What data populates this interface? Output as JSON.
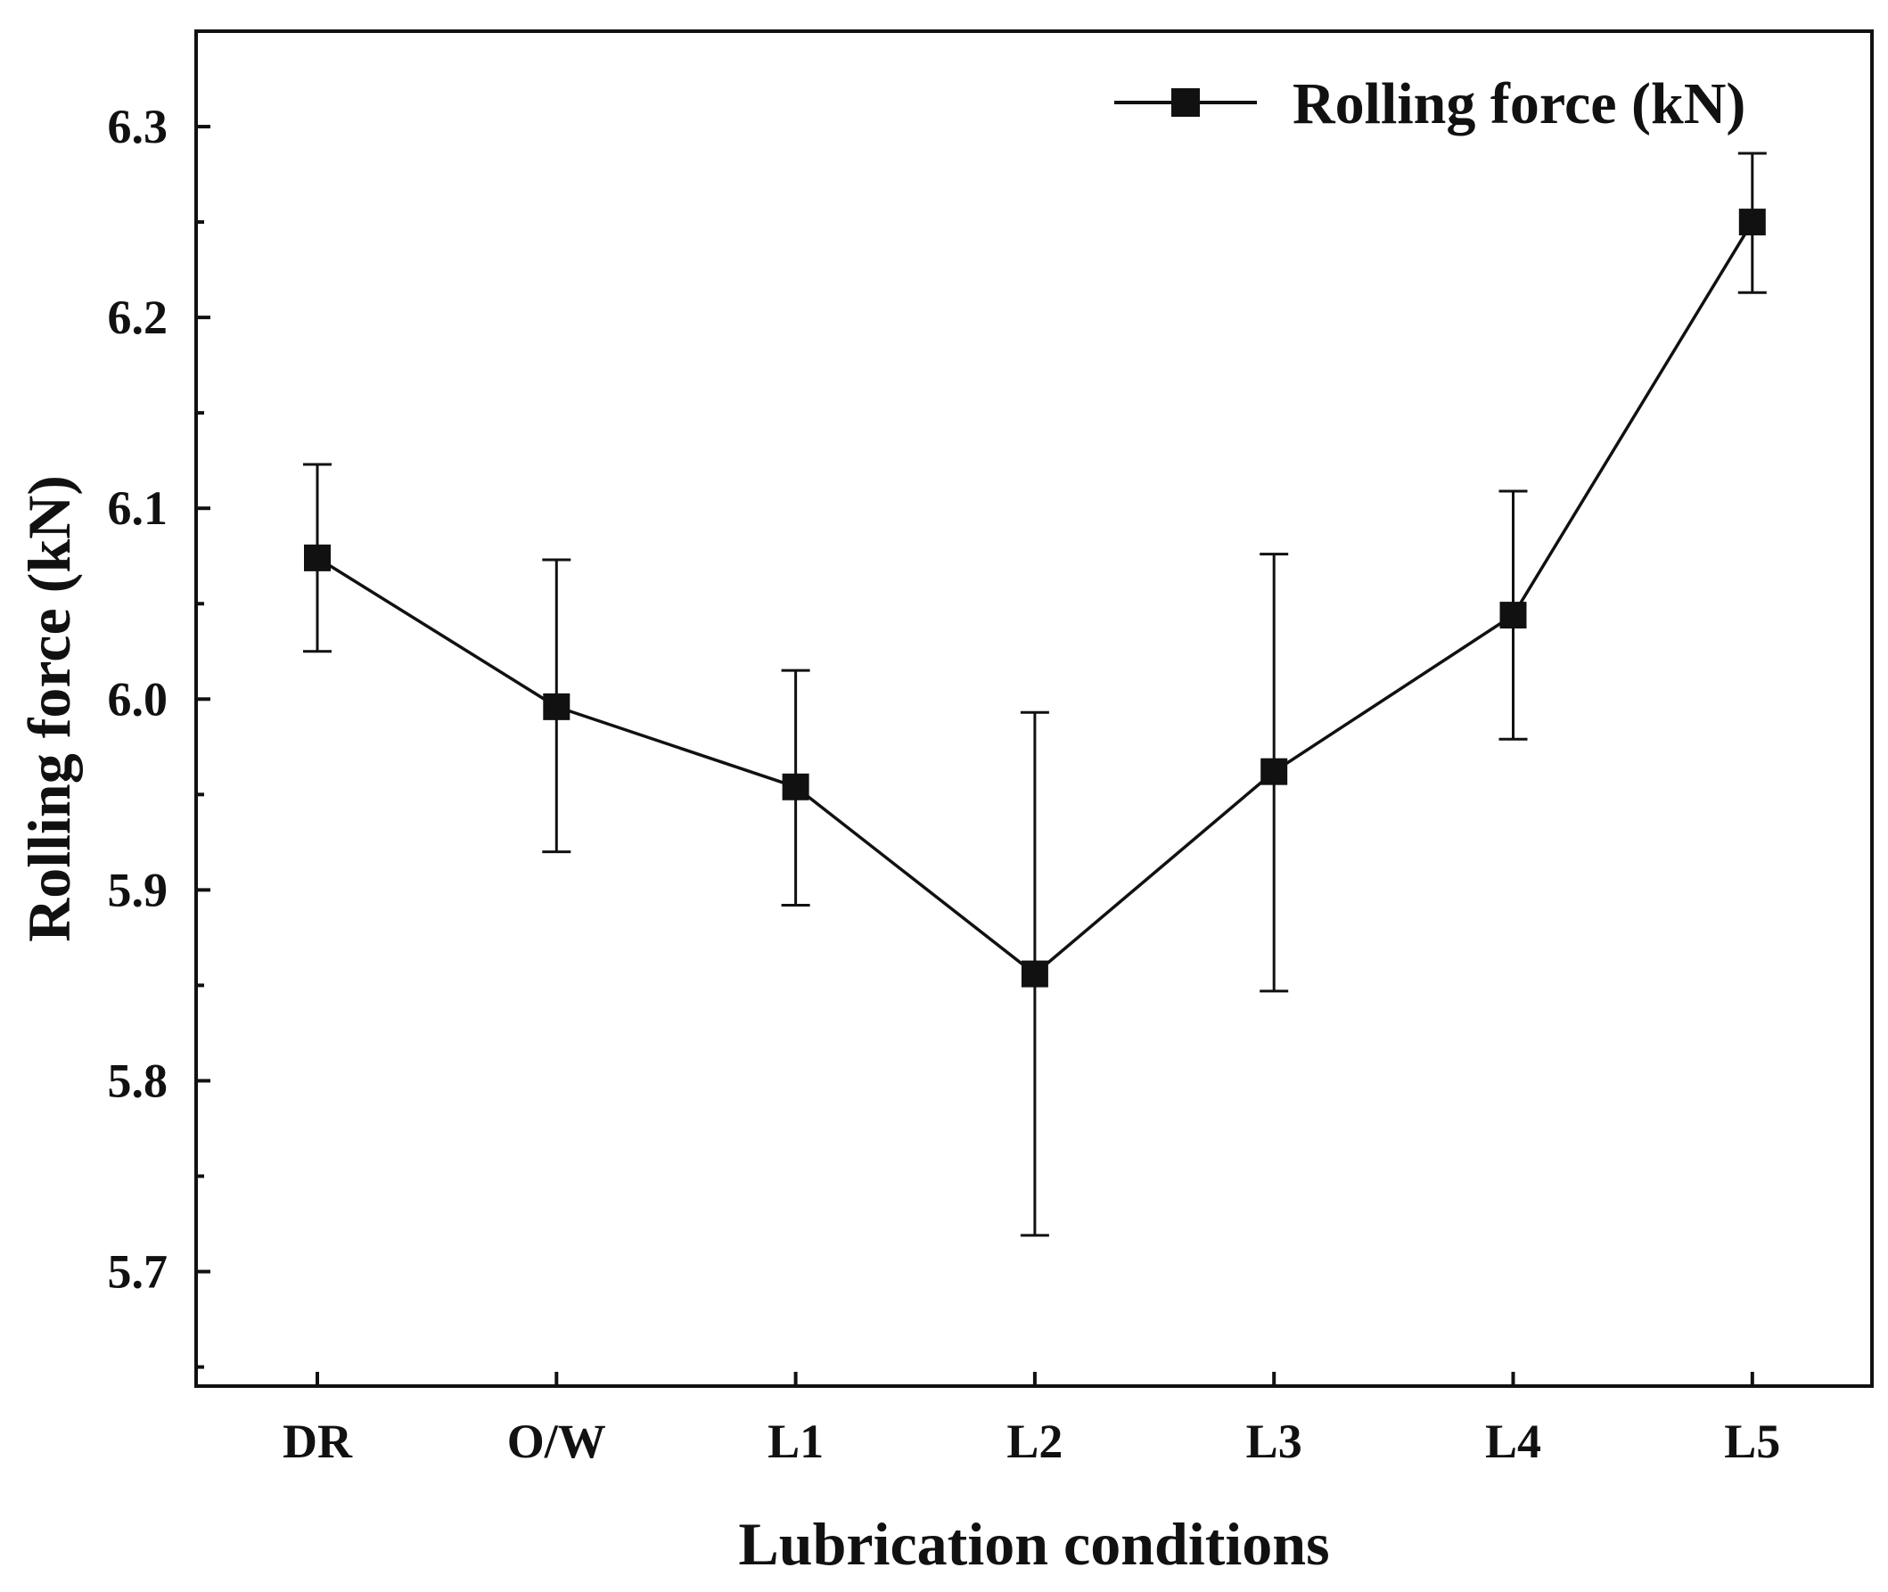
{
  "chart_data": {
    "type": "line",
    "title": "",
    "xlabel": "Lubrication conditions",
    "ylabel": "Rolling force (kN)",
    "categories": [
      "DR",
      "O/W",
      "L1",
      "L2",
      "L3",
      "L4",
      "L5"
    ],
    "ylim": [
      5.64,
      6.35
    ],
    "yticks": [
      5.7,
      5.8,
      5.9,
      6.0,
      6.1,
      6.2,
      6.3
    ],
    "ytick_labels": [
      "5.7",
      "5.8",
      "5.9",
      "6.0",
      "6.1",
      "6.2",
      "6.3"
    ],
    "grid": false,
    "legend_position": "top-right",
    "series": [
      {
        "name": "Rolling force (kN)",
        "marker": "square",
        "values": [
          6.074,
          5.996,
          5.954,
          5.856,
          5.962,
          6.044,
          6.25
        ],
        "err_upper": [
          6.123,
          6.073,
          6.015,
          5.993,
          6.076,
          6.109,
          6.286
        ],
        "err_lower": [
          6.025,
          5.92,
          5.892,
          5.719,
          5.847,
          5.979,
          6.213
        ]
      }
    ],
    "colors": {
      "line": "#111111",
      "axis": "#111111"
    }
  }
}
